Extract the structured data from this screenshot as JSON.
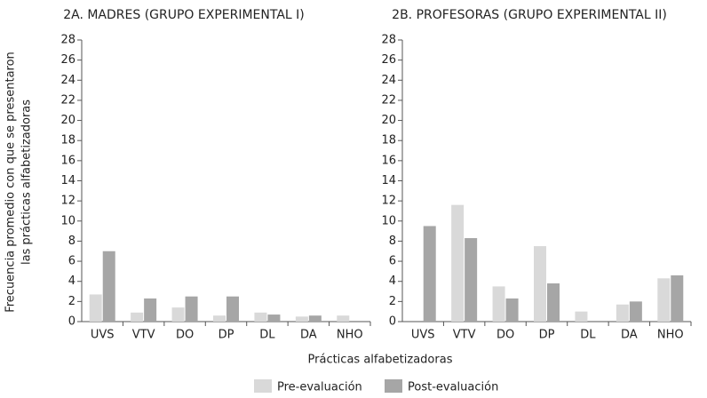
{
  "chart_data": [
    {
      "type": "bar",
      "title": "2A. MADRES (GRUPO EXPERIMENTAL I)",
      "categories": [
        "UVS",
        "VTV",
        "DO",
        "DP",
        "DL",
        "DA",
        "NHO"
      ],
      "series": [
        {
          "name": "Pre-evaluación",
          "color": "#d9d9d9",
          "values": [
            2.7,
            0.9,
            1.4,
            0.6,
            0.9,
            0.5,
            0.6
          ]
        },
        {
          "name": "Post-evaluación",
          "color": "#a6a6a6",
          "values": [
            7.0,
            2.3,
            2.5,
            2.5,
            0.7,
            0.6,
            null
          ]
        }
      ],
      "ylim": [
        0,
        28
      ],
      "yticks": [
        0,
        2,
        4,
        6,
        8,
        10,
        12,
        14,
        16,
        18,
        20,
        22,
        24,
        26,
        28
      ]
    },
    {
      "type": "bar",
      "title": "2B. PROFESORAS (GRUPO EXPERIMENTAL II)",
      "categories": [
        "UVS",
        "VTV",
        "DO",
        "DP",
        "DL",
        "DA",
        "NHO"
      ],
      "series": [
        {
          "name": "Pre-evaluación",
          "color": "#d9d9d9",
          "values": [
            null,
            11.6,
            3.5,
            7.5,
            1.0,
            1.7,
            4.3
          ]
        },
        {
          "name": "Post-evaluación",
          "color": "#a6a6a6",
          "values": [
            9.5,
            8.3,
            2.3,
            3.8,
            null,
            2.0,
            4.6
          ]
        }
      ],
      "ylim": [
        0,
        28
      ],
      "yticks": [
        0,
        2,
        4,
        6,
        8,
        10,
        12,
        14,
        16,
        18,
        20,
        22,
        24,
        26,
        28
      ]
    }
  ],
  "shared": {
    "y_label": [
      "Frecuencia promedio con que se presentaron",
      "las prácticas alfabetizadoras"
    ],
    "x_label": "Prácticas alfabetizadoras"
  }
}
